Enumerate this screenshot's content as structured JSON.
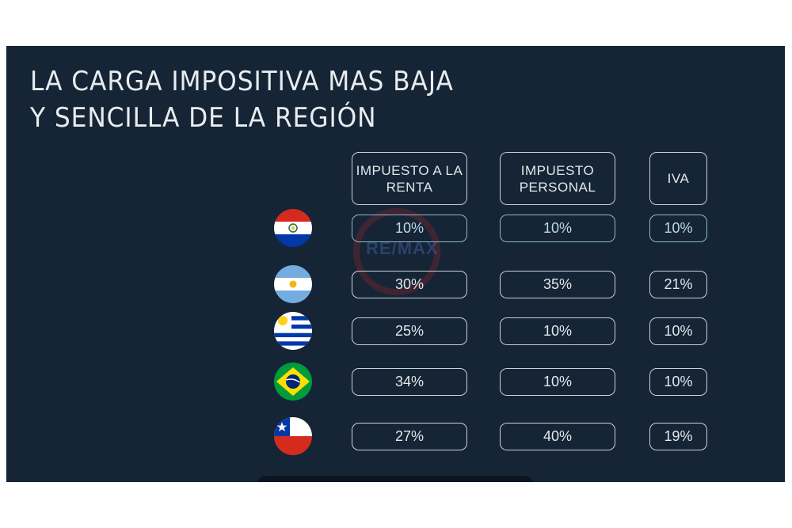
{
  "title": {
    "line1": "LA CARGA IMPOSITIVA MAS BAJA",
    "line2": "Y SENCILLA DE LA REGIÓN"
  },
  "headers": {
    "renta": "IMPUESTO A LA RENTA",
    "personal": "IMPUESTO PERSONAL",
    "iva": "IVA"
  },
  "watermark": "RE/MAX",
  "rows": [
    {
      "flag": "paraguay-flag-icon",
      "renta": "10%",
      "personal": "10%",
      "iva": "10%"
    },
    {
      "flag": "argentina-flag-icon",
      "renta": "30%",
      "personal": "35%",
      "iva": "21%"
    },
    {
      "flag": "uruguay-flag-icon",
      "renta": "25%",
      "personal": "10%",
      "iva": "10%"
    },
    {
      "flag": "brazil-flag-icon",
      "renta": "34%",
      "personal": "10%",
      "iva": "10%"
    },
    {
      "flag": "chile-flag-icon",
      "renta": "27%",
      "personal": "40%",
      "iva": "19%"
    }
  ],
  "colors": {
    "panel": "#152536",
    "border": "#c9d0d6",
    "highlight": "#8db6cf"
  }
}
